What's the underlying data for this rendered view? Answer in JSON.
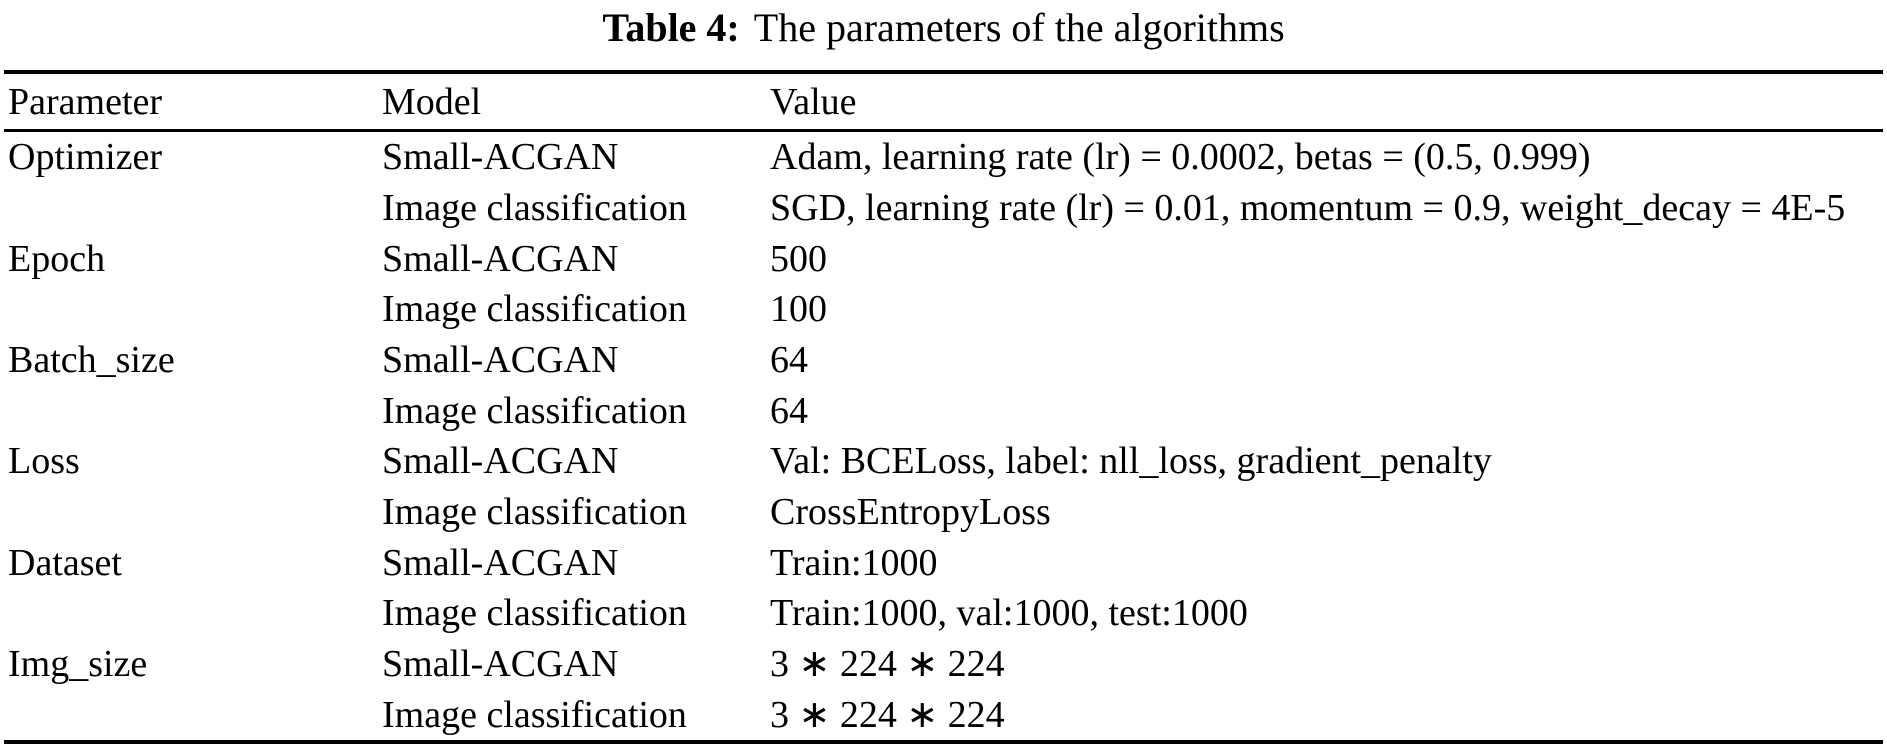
{
  "caption": {
    "label": "Table 4:",
    "text": "The parameters of the algorithms"
  },
  "table": {
    "headers": [
      "Parameter",
      "Model",
      "Value"
    ],
    "rows": [
      {
        "parameter": "Optimizer",
        "model": "Small-ACGAN",
        "value": "Adam, learning rate (lr) = 0.0002, betas = (0.5, 0.999)"
      },
      {
        "parameter": "",
        "model": "Image classification",
        "value": "SGD, learning rate (lr) = 0.01, momentum = 0.9, weight_decay = 4E-5"
      },
      {
        "parameter": "Epoch",
        "model": "Small-ACGAN",
        "value": "500"
      },
      {
        "parameter": "",
        "model": "Image classification",
        "value": "100"
      },
      {
        "parameter": "Batch_size",
        "model": "Small-ACGAN",
        "value": "64"
      },
      {
        "parameter": "",
        "model": "Image classification",
        "value": "64"
      },
      {
        "parameter": "Loss",
        "model": "Small-ACGAN",
        "value": "Val: BCELoss, label: nll_loss, gradient_penalty"
      },
      {
        "parameter": "",
        "model": "Image classification",
        "value": "CrossEntropyLoss"
      },
      {
        "parameter": "Dataset",
        "model": "Small-ACGAN",
        "value": "Train:1000"
      },
      {
        "parameter": "",
        "model": "Image classification",
        "value": "Train:1000, val:1000, test:1000"
      },
      {
        "parameter": "Img_size",
        "model": "Small-ACGAN",
        "value": "3 ∗ 224 ∗ 224"
      },
      {
        "parameter": "",
        "model": "Image classification",
        "value": "3 ∗ 224 ∗ 224"
      }
    ],
    "text_color": "#000000",
    "background": "#ffffff"
  }
}
